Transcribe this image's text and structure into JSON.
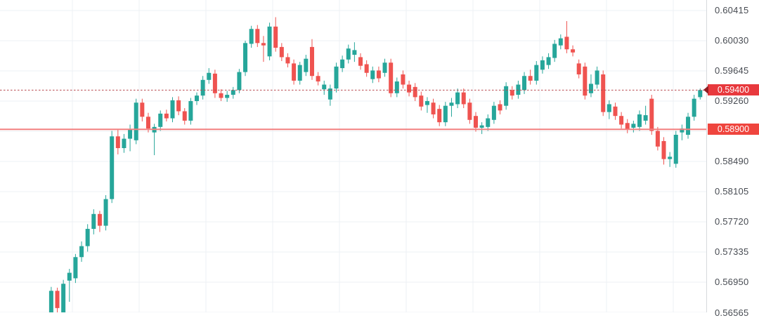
{
  "chart": {
    "background": "#ffffff",
    "axis": {
      "border_color": "#d6d9dd",
      "text_color": "#474b52",
      "tick_labels": [
        "0.60415",
        "0.60030",
        "0.59645",
        "0.59260",
        "0.58490",
        "0.58105",
        "0.57720",
        "0.57335",
        "0.56950",
        "0.56565"
      ]
    },
    "price_tags": [
      {
        "label": "0.59400",
        "bg": "#e8393d",
        "text_color": "#ffffff",
        "has_arrow": true
      },
      {
        "label": "0.58900",
        "bg": "#ef453e",
        "text_color": "#ffffff",
        "has_arrow": false
      }
    ]
  },
  "chart_data": {
    "type": "candlestick",
    "title": "",
    "ylim": [
      0.56565,
      0.60549
    ],
    "grid": "on",
    "up_color": "#26a69a",
    "down_color": "#ef5350",
    "grid_color": "#eef1f4",
    "y_tick_values": [
      0.60415,
      0.6003,
      0.59645,
      0.5926,
      0.5849,
      0.58105,
      0.5772,
      0.57335,
      0.5695,
      0.56565
    ],
    "grid_levels": [
      0.60415,
      0.6003,
      0.59645,
      0.5926,
      0.58875,
      0.5849,
      0.58105,
      0.5772,
      0.57335,
      0.5695,
      0.56565
    ],
    "price_lines": [
      {
        "value": 0.594,
        "label": "0.59400",
        "style": "dashed",
        "color": "#b8474e"
      },
      {
        "value": 0.589,
        "label": "0.58900",
        "style": "solid",
        "color": "#f28080"
      }
    ],
    "last_price": 0.594,
    "candles_format": [
      "open",
      "high",
      "low",
      "close"
    ],
    "candles": [
      [
        0.5641,
        0.565,
        0.5637,
        0.5647
      ],
      [
        0.5647,
        0.5652,
        0.5637,
        0.5641
      ],
      [
        0.5641,
        0.5654,
        0.5638,
        0.565
      ],
      [
        0.565,
        0.5689,
        0.5646,
        0.5684
      ],
      [
        0.5684,
        0.5688,
        0.5656,
        0.5662
      ],
      [
        0.5656,
        0.5698,
        0.5651,
        0.5693
      ],
      [
        0.5697,
        0.5712,
        0.567,
        0.5707
      ],
      [
        0.57,
        0.5731,
        0.5694,
        0.5727
      ],
      [
        0.5727,
        0.5747,
        0.5721,
        0.5741
      ],
      [
        0.5741,
        0.5769,
        0.5734,
        0.5763
      ],
      [
        0.5763,
        0.5788,
        0.5756,
        0.5782
      ],
      [
        0.5782,
        0.5786,
        0.5759,
        0.5767
      ],
      [
        0.5767,
        0.5806,
        0.5761,
        0.5801
      ],
      [
        0.5801,
        0.5888,
        0.5796,
        0.5881
      ],
      [
        0.5881,
        0.589,
        0.5858,
        0.5866
      ],
      [
        0.5866,
        0.5884,
        0.586,
        0.5878
      ],
      [
        0.5878,
        0.5896,
        0.5862,
        0.589
      ],
      [
        0.5876,
        0.5929,
        0.5871,
        0.5924
      ],
      [
        0.5924,
        0.5929,
        0.59,
        0.5906
      ],
      [
        0.5906,
        0.5911,
        0.5886,
        0.5891
      ],
      [
        0.5886,
        0.5897,
        0.5857,
        0.5893
      ],
      [
        0.5893,
        0.5914,
        0.5888,
        0.591
      ],
      [
        0.591,
        0.5915,
        0.59,
        0.5904
      ],
      [
        0.5904,
        0.5931,
        0.5899,
        0.5927
      ],
      [
        0.5927,
        0.5932,
        0.5908,
        0.5913
      ],
      [
        0.5913,
        0.5917,
        0.5896,
        0.5901
      ],
      [
        0.5901,
        0.593,
        0.5896,
        0.5926
      ],
      [
        0.5926,
        0.5937,
        0.5921,
        0.5933
      ],
      [
        0.5933,
        0.5958,
        0.5928,
        0.5953
      ],
      [
        0.5953,
        0.5968,
        0.5948,
        0.5962
      ],
      [
        0.5961,
        0.5966,
        0.593,
        0.5936
      ],
      [
        0.5936,
        0.5941,
        0.5926,
        0.593
      ],
      [
        0.593,
        0.5939,
        0.5925,
        0.5934
      ],
      [
        0.5934,
        0.5944,
        0.5929,
        0.594
      ],
      [
        0.594,
        0.5967,
        0.5936,
        0.5963
      ],
      [
        0.5963,
        0.6003,
        0.5958,
        0.6
      ],
      [
        0.5999,
        0.6022,
        0.5994,
        0.6018
      ],
      [
        0.6018,
        0.6023,
        0.5995,
        0.6
      ],
      [
        0.6,
        0.6009,
        0.5976,
        0.5997
      ],
      [
        0.5983,
        0.6026,
        0.5978,
        0.6021
      ],
      [
        0.6021,
        0.6033,
        0.5989,
        0.5994
      ],
      [
        0.5995,
        0.6,
        0.5977,
        0.5982
      ],
      [
        0.5982,
        0.5987,
        0.5969,
        0.5974
      ],
      [
        0.5974,
        0.5979,
        0.5947,
        0.5952
      ],
      [
        0.5952,
        0.5976,
        0.5947,
        0.5972
      ],
      [
        0.5963,
        0.5985,
        0.5958,
        0.598
      ],
      [
        0.5995,
        0.6005,
        0.5953,
        0.5958
      ],
      [
        0.5958,
        0.5963,
        0.5946,
        0.5951
      ],
      [
        0.5941,
        0.5952,
        0.5934,
        0.5947
      ],
      [
        0.5928,
        0.5947,
        0.592,
        0.5942
      ],
      [
        0.5942,
        0.5975,
        0.5937,
        0.597
      ],
      [
        0.5968,
        0.5984,
        0.5963,
        0.5979
      ],
      [
        0.5979,
        0.5998,
        0.5974,
        0.5993
      ],
      [
        0.5985,
        0.6001,
        0.5976,
        0.5991
      ],
      [
        0.5982,
        0.5987,
        0.5966,
        0.5971
      ],
      [
        0.5973,
        0.5978,
        0.5957,
        0.5962
      ],
      [
        0.5954,
        0.597,
        0.5949,
        0.5965
      ],
      [
        0.5965,
        0.597,
        0.595,
        0.5955
      ],
      [
        0.5962,
        0.598,
        0.5957,
        0.5975
      ],
      [
        0.5975,
        0.598,
        0.5931,
        0.5936
      ],
      [
        0.5936,
        0.5956,
        0.5931,
        0.5951
      ],
      [
        0.596,
        0.5965,
        0.5942,
        0.5947
      ],
      [
        0.5947,
        0.5952,
        0.5932,
        0.5937
      ],
      [
        0.5944,
        0.5949,
        0.5926,
        0.5931
      ],
      [
        0.5933,
        0.5938,
        0.5914,
        0.5919
      ],
      [
        0.5921,
        0.5931,
        0.5911,
        0.5926
      ],
      [
        0.5924,
        0.5929,
        0.5904,
        0.5909
      ],
      [
        0.5916,
        0.5921,
        0.5894,
        0.5899
      ],
      [
        0.5899,
        0.5925,
        0.5894,
        0.592
      ],
      [
        0.592,
        0.593,
        0.5906,
        0.5924
      ],
      [
        0.5922,
        0.5942,
        0.5917,
        0.5937
      ],
      [
        0.5937,
        0.5942,
        0.5917,
        0.5922
      ],
      [
        0.5924,
        0.5929,
        0.5897,
        0.5902
      ],
      [
        0.5907,
        0.5912,
        0.5887,
        0.5892
      ],
      [
        0.5892,
        0.5899,
        0.5884,
        0.5895
      ],
      [
        0.5893,
        0.5909,
        0.5888,
        0.5904
      ],
      [
        0.5902,
        0.5925,
        0.5897,
        0.592
      ],
      [
        0.5922,
        0.5927,
        0.5909,
        0.5914
      ],
      [
        0.592,
        0.595,
        0.5915,
        0.5945
      ],
      [
        0.594,
        0.5945,
        0.5928,
        0.5933
      ],
      [
        0.5934,
        0.5952,
        0.5929,
        0.5947
      ],
      [
        0.594,
        0.5963,
        0.5935,
        0.5958
      ],
      [
        0.5958,
        0.5966,
        0.5947,
        0.5952
      ],
      [
        0.5952,
        0.5977,
        0.5947,
        0.5972
      ],
      [
        0.5966,
        0.5983,
        0.5961,
        0.5978
      ],
      [
        0.5972,
        0.5987,
        0.5967,
        0.5982
      ],
      [
        0.5981,
        0.6004,
        0.5976,
        0.5999
      ],
      [
        0.5997,
        0.6011,
        0.5992,
        0.6006
      ],
      [
        0.6008,
        0.6028,
        0.5987,
        0.5992
      ],
      [
        0.5992,
        0.5997,
        0.5983,
        0.5988
      ],
      [
        0.5974,
        0.5979,
        0.5955,
        0.596
      ],
      [
        0.597,
        0.5975,
        0.5928,
        0.5933
      ],
      [
        0.5936,
        0.596,
        0.5931,
        0.5948
      ],
      [
        0.5947,
        0.597,
        0.5942,
        0.5965
      ],
      [
        0.596,
        0.5965,
        0.5907,
        0.5912
      ],
      [
        0.5912,
        0.5927,
        0.5903,
        0.5922
      ],
      [
        0.5919,
        0.5924,
        0.5902,
        0.5907
      ],
      [
        0.5907,
        0.5912,
        0.5891,
        0.5896
      ],
      [
        0.5898,
        0.5903,
        0.5885,
        0.589
      ],
      [
        0.5892,
        0.5901,
        0.5886,
        0.5897
      ],
      [
        0.5893,
        0.5914,
        0.5888,
        0.5909
      ],
      [
        0.5901,
        0.592,
        0.5896,
        0.5908
      ],
      [
        0.5929,
        0.5934,
        0.5883,
        0.5888
      ],
      [
        0.5888,
        0.5893,
        0.5863,
        0.5868
      ],
      [
        0.5875,
        0.588,
        0.5845,
        0.5852
      ],
      [
        0.5852,
        0.5861,
        0.5842,
        0.5855
      ],
      [
        0.5846,
        0.5888,
        0.5841,
        0.5883
      ],
      [
        0.5886,
        0.5896,
        0.5876,
        0.5891
      ],
      [
        0.5883,
        0.5911,
        0.5878,
        0.5906
      ],
      [
        0.5906,
        0.5934,
        0.5901,
        0.5929
      ],
      [
        0.5931,
        0.5942,
        0.5928,
        0.594
      ]
    ]
  }
}
